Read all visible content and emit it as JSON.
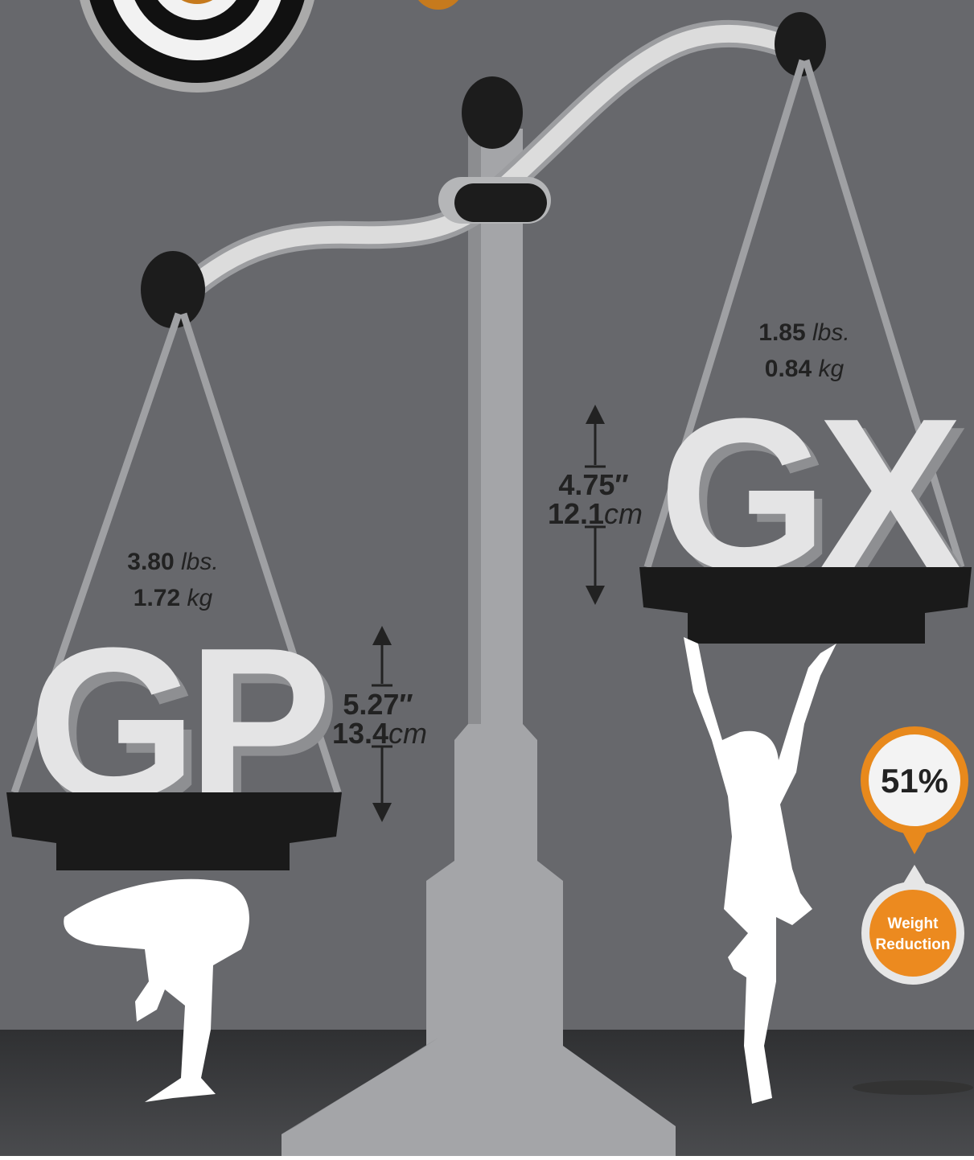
{
  "left": {
    "label": "GP",
    "weight_lbs": "3.80",
    "lbs_unit": "lbs.",
    "weight_kg": "1.72",
    "kg_unit": "kg",
    "height_in": "5.27″",
    "height_cm": "13.4",
    "cm_unit": "cm"
  },
  "right": {
    "label": "GX",
    "weight_lbs": "1.85",
    "lbs_unit": "lbs.",
    "weight_kg": "0.84",
    "kg_unit": "kg",
    "height_in": "4.75″",
    "height_cm": "12.1",
    "cm_unit": "cm"
  },
  "badge": {
    "value": "51%",
    "label_lines": [
      "Weight",
      "Reduction"
    ]
  }
}
